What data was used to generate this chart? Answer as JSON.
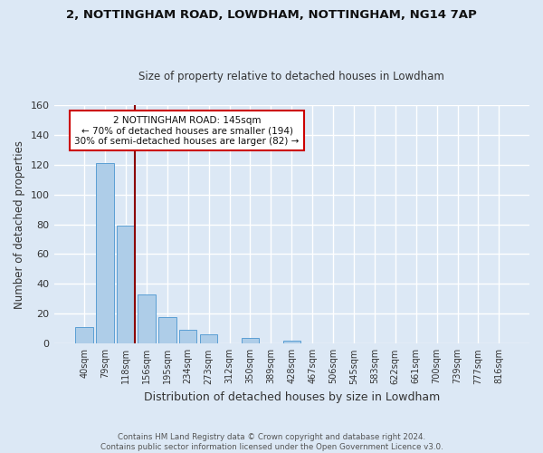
{
  "title1": "2, NOTTINGHAM ROAD, LOWDHAM, NOTTINGHAM, NG14 7AP",
  "title2": "Size of property relative to detached houses in Lowdham",
  "xlabel": "Distribution of detached houses by size in Lowdham",
  "ylabel": "Number of detached properties",
  "bar_labels": [
    "40sqm",
    "79sqm",
    "118sqm",
    "156sqm",
    "195sqm",
    "234sqm",
    "273sqm",
    "312sqm",
    "350sqm",
    "389sqm",
    "428sqm",
    "467sqm",
    "506sqm",
    "545sqm",
    "583sqm",
    "622sqm",
    "661sqm",
    "700sqm",
    "739sqm",
    "777sqm",
    "816sqm"
  ],
  "bar_values": [
    11,
    121,
    79,
    33,
    18,
    9,
    6,
    0,
    4,
    0,
    2,
    0,
    0,
    0,
    0,
    0,
    0,
    0,
    0,
    0,
    0
  ],
  "bar_color": "#aecde8",
  "bar_edge_color": "#5a9fd4",
  "bg_color": "#dce8f5",
  "plot_bg_color": "#dce8f5",
  "grid_color": "#ffffff",
  "vline_color": "#8b0000",
  "annotation_text": "2 NOTTINGHAM ROAD: 145sqm\n← 70% of detached houses are smaller (194)\n30% of semi-detached houses are larger (82) →",
  "annotation_box_color": "#ffffff",
  "annotation_box_edge": "#cc0000",
  "ylim": [
    0,
    160
  ],
  "yticks": [
    0,
    20,
    40,
    60,
    80,
    100,
    120,
    140,
    160
  ],
  "footnote": "Contains HM Land Registry data © Crown copyright and database right 2024.\nContains public sector information licensed under the Open Government Licence v3.0.",
  "vline_pos": 2.425
}
